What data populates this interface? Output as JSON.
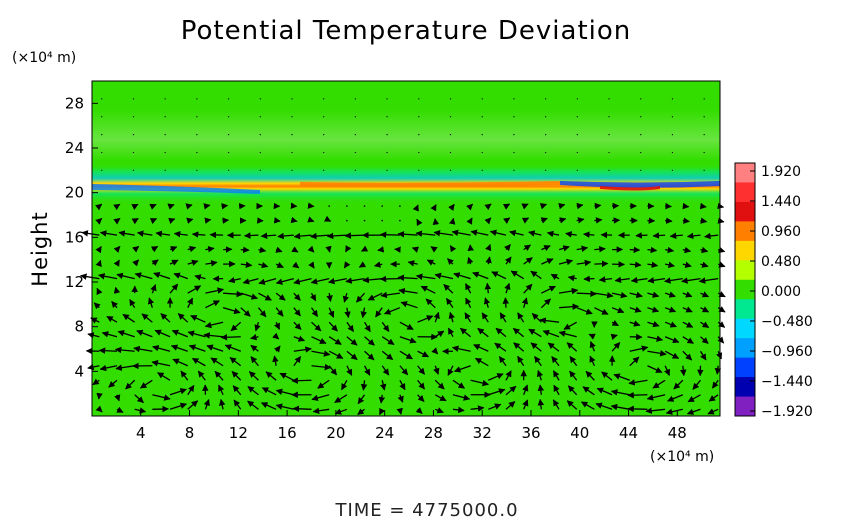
{
  "chart_data": {
    "type": "heatmap",
    "title": "Potential Temperature Deviation",
    "ylabel": "Height",
    "x_unit_label": "(×10⁴ m)",
    "y_unit_label": "(×10⁴ m)",
    "x_ticks": [
      4,
      8,
      12,
      16,
      20,
      24,
      28,
      32,
      36,
      40,
      44,
      48
    ],
    "y_ticks": [
      4,
      8,
      12,
      16,
      20,
      24,
      28
    ],
    "xlim": [
      0,
      51.5
    ],
    "ylim": [
      0,
      30
    ],
    "colorbar": {
      "ticks": [
        "1.920",
        "1.440",
        "0.960",
        "0.480",
        "0.000",
        "−0.480",
        "−0.960",
        "−1.440",
        "−1.920"
      ],
      "range": [
        -1.92,
        1.92
      ],
      "colors_high_to_low": [
        "#ff8080",
        "#ff3030",
        "#e01010",
        "#ff7f00",
        "#ffd700",
        "#b4ff00",
        "#33dd00",
        "#00e890",
        "#00d8ff",
        "#00a0ff",
        "#0040ff",
        "#0000b0",
        "#8020c0"
      ]
    },
    "background_value": 0.0,
    "band": {
      "y_center": 20.8,
      "description_values": {
        "min": -1.92,
        "max": 1.92
      }
    },
    "footer": "TIME  =  4775000.0"
  }
}
